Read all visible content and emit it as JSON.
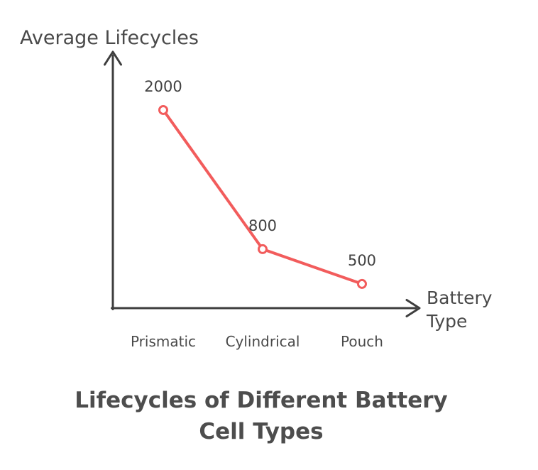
{
  "chart_data": {
    "type": "line",
    "categories": [
      "Prismatic",
      "Cylindrical",
      "Pouch"
    ],
    "values": [
      2000,
      800,
      500
    ],
    "title": "Lifecycles of Different Battery Cell Types",
    "title_lines": [
      "Lifecycles of Different Battery",
      "Cell Types"
    ],
    "ylabel": "Average Lifecycles",
    "xlabel": "Battery Type",
    "xlabel_lines": [
      "Battery",
      "Type"
    ],
    "ylim": [
      0,
      2200
    ],
    "grid": false,
    "legend": "none",
    "marker": "open-circle",
    "colors": {
      "line": "#F25C5C",
      "marker_fill": "#FFFFFF",
      "axis": "#3E3E3E",
      "label_text": "#4A4A4A",
      "title_text": "#4D4D4D",
      "background": "#FFFFFF"
    }
  }
}
